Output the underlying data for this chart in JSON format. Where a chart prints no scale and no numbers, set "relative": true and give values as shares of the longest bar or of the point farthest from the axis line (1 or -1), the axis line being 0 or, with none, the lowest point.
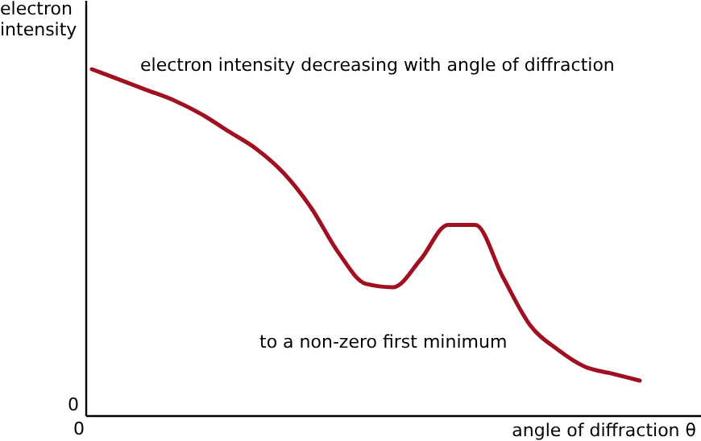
{
  "chart_data": {
    "type": "line",
    "relative": true,
    "xlabel": "angle of diffraction θ",
    "ylabel": "electron intensity",
    "categories": [
      null,
      null,
      null,
      null,
      null,
      null,
      null,
      null,
      null,
      null,
      null,
      null,
      null,
      null,
      null,
      null,
      null,
      null,
      null,
      null,
      null
    ],
    "series": [
      {
        "color": "#a01020",
        "values": [
          1,
          0.97,
          0.94,
          0.91,
          0.87,
          0.82,
          0.77,
          0.7,
          0.6,
          0.47,
          0.38,
          0.37,
          0.45,
          0.55,
          0.55,
          0.4,
          0.26,
          0.19,
          0.14,
          0.12,
          0.1
        ]
      }
    ],
    "annotations": [
      "electron intensity decreasing with angle of diffraction",
      "to a non-zero first minimum",
      "0",
      "0"
    ],
    "grid": false
  }
}
